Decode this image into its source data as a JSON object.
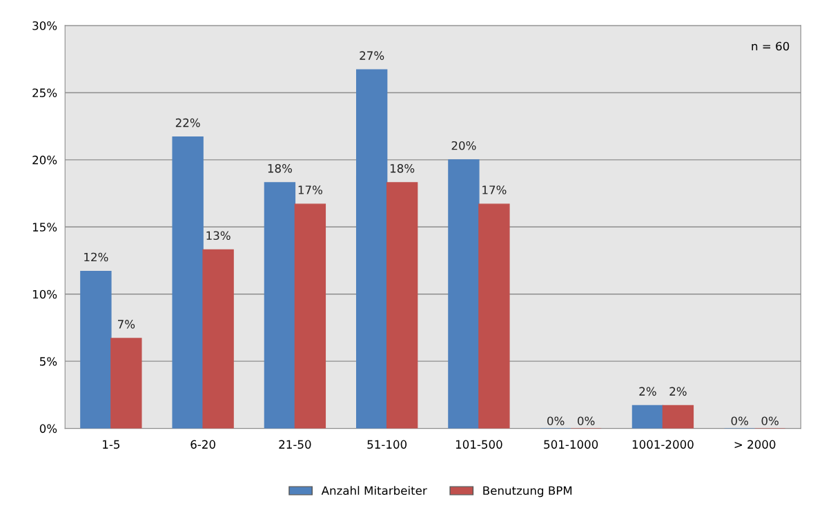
{
  "chart_data": {
    "type": "bar",
    "categories": [
      "1-5",
      "6-20",
      "21-50",
      "51-100",
      "101-500",
      "501-1000",
      "1001-2000",
      "> 2000"
    ],
    "series": [
      {
        "name": "Anzahl Mitarbeiter",
        "color": "#4f81bd",
        "values": [
          11.7,
          21.7,
          18.3,
          26.7,
          20.0,
          0,
          1.7,
          0
        ],
        "value_labels": [
          "12%",
          "22%",
          "18%",
          "27%",
          "20%",
          "0%",
          "2%",
          "0%"
        ]
      },
      {
        "name": "Benutzung BPM",
        "color": "#c0504d",
        "values": [
          6.7,
          13.3,
          16.7,
          18.3,
          16.7,
          0,
          1.7,
          0
        ],
        "value_labels": [
          "7%",
          "13%",
          "17%",
          "18%",
          "17%",
          "0%",
          "2%",
          "0%"
        ]
      }
    ],
    "ylim": [
      0,
      30
    ],
    "yticks": [
      {
        "value": 0,
        "label": "0%"
      },
      {
        "value": 5,
        "label": "5%"
      },
      {
        "value": 10,
        "label": "10%"
      },
      {
        "value": 15,
        "label": "15%"
      },
      {
        "value": 20,
        "label": "20%"
      },
      {
        "value": 25,
        "label": "25%"
      },
      {
        "value": 30,
        "label": "30%"
      }
    ],
    "grid": "y",
    "legend": "bottom",
    "annotations": [
      "n = 60"
    ]
  }
}
